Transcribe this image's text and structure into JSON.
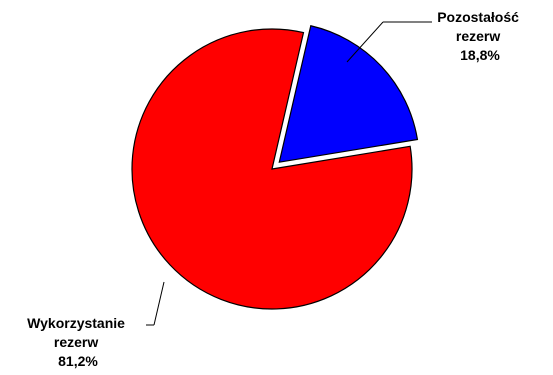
{
  "chart_data": {
    "type": "pie",
    "title": "",
    "slices": [
      {
        "label_lines": [
          "Pozostałość",
          "rezerw"
        ],
        "value": 18.8,
        "value_label": "18,8%",
        "color": "#0000ff",
        "exploded": true
      },
      {
        "label_lines": [
          "Wykorzystanie",
          "rezerw"
        ],
        "value": 81.2,
        "value_label": "81,2%",
        "color": "#ff0000",
        "exploded": false
      }
    ]
  }
}
